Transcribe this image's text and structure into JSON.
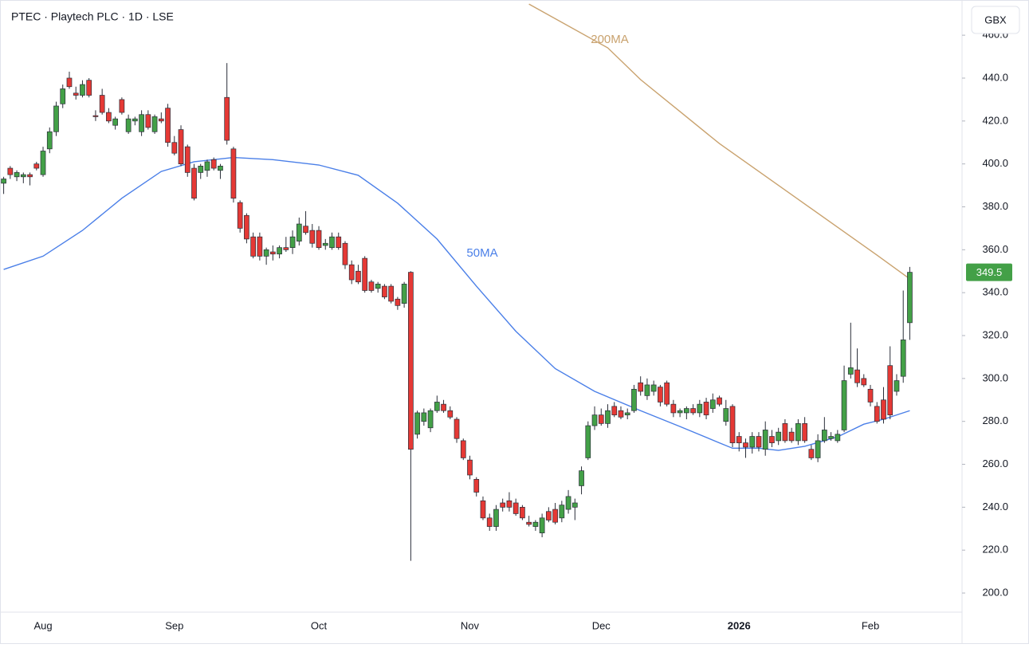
{
  "chart_data": {
    "type": "candlestick",
    "title": "PTEC · Playtech PLC · 1D · LSE",
    "currency": "GBX",
    "up_color": "#43a047",
    "down_color": "#e53935",
    "grid": false,
    "ylim": [
      191.1,
      476.4
    ],
    "yticks": [
      {
        "value": 200,
        "label": "200.0"
      },
      {
        "value": 220,
        "label": "220.0"
      },
      {
        "value": 240,
        "label": "240.0"
      },
      {
        "value": 260,
        "label": "260.0"
      },
      {
        "value": 280,
        "label": "280.0"
      },
      {
        "value": 300,
        "label": "300.0"
      },
      {
        "value": 320,
        "label": "320.0"
      },
      {
        "value": 340,
        "label": "340.0"
      },
      {
        "value": 360,
        "label": "360.0"
      },
      {
        "value": 380,
        "label": "380.0"
      },
      {
        "value": 400,
        "label": "400.0"
      },
      {
        "value": 420,
        "label": "420.0"
      },
      {
        "value": 440,
        "label": "440.0"
      },
      {
        "value": 460,
        "label": "460.0"
      }
    ],
    "categories": [
      null,
      null,
      null,
      null,
      null,
      null,
      "Aug",
      null,
      null,
      null,
      null,
      null,
      null,
      null,
      null,
      null,
      null,
      null,
      null,
      null,
      null,
      null,
      null,
      null,
      null,
      null,
      "Sep",
      null,
      null,
      null,
      null,
      null,
      null,
      null,
      null,
      null,
      null,
      null,
      null,
      null,
      null,
      null,
      null,
      null,
      null,
      null,
      null,
      null,
      "Oct",
      null,
      null,
      null,
      null,
      null,
      null,
      null,
      null,
      null,
      null,
      null,
      null,
      null,
      null,
      null,
      null,
      null,
      null,
      null,
      null,
      null,
      null,
      "Nov",
      null,
      null,
      null,
      null,
      null,
      null,
      null,
      null,
      null,
      null,
      null,
      null,
      null,
      null,
      null,
      null,
      null,
      null,
      null,
      "Dec",
      null,
      null,
      null,
      null,
      null,
      null,
      null,
      null,
      null,
      null,
      null,
      null,
      null,
      null,
      null,
      null,
      null,
      null,
      null,
      null,
      "2026",
      null,
      null,
      null,
      null,
      null,
      null,
      null,
      null,
      null,
      null,
      null,
      null,
      null,
      null,
      null,
      null,
      null,
      null,
      null,
      "Feb",
      null,
      null,
      null,
      null,
      null,
      null
    ],
    "open": [
      391,
      398,
      394,
      394,
      395,
      400,
      395,
      407,
      415,
      428,
      440,
      433,
      432,
      439,
      422.5,
      432,
      424,
      418,
      430,
      415,
      420,
      415,
      423,
      415,
      421,
      426,
      410,
      416,
      408,
      398,
      396,
      397,
      402,
      397,
      431,
      407,
      382,
      376,
      366,
      366,
      357,
      359,
      358,
      361,
      361,
      364,
      371,
      369,
      369,
      362,
      361,
      366,
      363,
      353,
      350,
      356,
      345,
      342,
      343,
      343,
      337,
      335,
      349.5,
      274,
      280,
      277,
      285,
      288,
      285,
      281,
      271,
      262,
      253,
      243,
      235,
      231,
      242,
      243,
      242,
      240,
      233,
      231,
      228,
      238,
      239,
      235,
      239,
      240,
      250,
      263,
      278,
      283,
      279,
      287,
      285,
      283,
      285,
      298,
      292,
      294,
      296,
      298,
      288,
      284,
      284,
      286,
      284,
      289,
      286,
      291,
      280,
      287,
      273,
      270,
      268,
      273,
      267,
      273,
      271,
      279,
      275,
      271,
      279,
      267,
      263,
      271,
      272,
      271,
      276,
      302,
      304,
      300,
      295,
      287,
      290,
      306,
      294,
      301,
      326
    ],
    "high": [
      394,
      399,
      397,
      396,
      396,
      401,
      408,
      417,
      429,
      437,
      443,
      436,
      439,
      440,
      425,
      435,
      426,
      422,
      431,
      423,
      422,
      425,
      425,
      423,
      424,
      428,
      413,
      418,
      409,
      400,
      400,
      402,
      403,
      400,
      447,
      408,
      383,
      377,
      368,
      368,
      361,
      362,
      362,
      366,
      369,
      375,
      378,
      372,
      371,
      365,
      368,
      368,
      364,
      355,
      353,
      357,
      346,
      345,
      344,
      344,
      338,
      345,
      350,
      285,
      286,
      286,
      292,
      290,
      287,
      282,
      272,
      264,
      254,
      245,
      237,
      241,
      244,
      247,
      244,
      241,
      236,
      234,
      237,
      240,
      242,
      243,
      248,
      244,
      259,
      280,
      287,
      286,
      288,
      289,
      287,
      286,
      297,
      301,
      300,
      299,
      297,
      299,
      290,
      286,
      287,
      288,
      290,
      291,
      293,
      292,
      290,
      288,
      275,
      272,
      275,
      275,
      280,
      276,
      277,
      281,
      277,
      281,
      282,
      269,
      274,
      282,
      275,
      276,
      306,
      326,
      314,
      302,
      297,
      289,
      296,
      315,
      302,
      341,
      352
    ],
    "low": [
      386,
      393,
      392,
      391,
      390,
      397,
      394,
      405,
      413,
      426,
      435,
      430,
      431,
      431,
      420,
      423,
      419,
      416,
      423,
      414,
      418,
      413,
      416,
      414,
      419,
      408,
      404,
      399,
      394,
      383,
      393,
      394,
      397,
      393,
      409,
      382,
      368,
      363,
      356,
      355,
      353,
      355,
      356,
      359,
      358,
      362,
      367,
      361,
      360,
      360,
      360,
      360,
      351,
      344,
      344,
      340,
      340,
      340,
      337,
      335,
      332,
      333,
      215,
      272,
      278,
      275,
      284,
      284,
      281,
      270,
      262,
      253,
      245,
      234,
      229,
      229,
      238,
      238,
      236,
      234,
      231,
      229,
      226,
      233,
      232,
      233,
      237,
      234,
      246,
      262,
      276,
      278,
      277,
      282,
      281,
      281,
      284,
      292,
      290,
      292,
      287,
      287,
      282,
      282,
      281,
      283,
      282,
      281,
      284,
      287,
      278,
      268,
      266,
      263,
      265,
      266,
      264,
      268,
      269,
      270,
      270,
      269,
      270,
      262,
      261,
      270,
      271,
      270,
      275,
      300,
      296,
      296,
      287,
      279,
      279,
      281,
      292,
      298,
      318
    ],
    "close": [
      393,
      395,
      396,
      395,
      394,
      398,
      406,
      415,
      427,
      435,
      436,
      432,
      437,
      432,
      422,
      424,
      420,
      421,
      424,
      421,
      421,
      423,
      417,
      422,
      420,
      410,
      405,
      400,
      396,
      384,
      399,
      401,
      398,
      399,
      411,
      384,
      370,
      365,
      357,
      357,
      360,
      358,
      361,
      360,
      366,
      372,
      368,
      363,
      361,
      363,
      366,
      361,
      353,
      346,
      345,
      341,
      341,
      344,
      338,
      336,
      334,
      344,
      267,
      284,
      284,
      285,
      289,
      285,
      282,
      272,
      263,
      255,
      247,
      235,
      231,
      239,
      240,
      240,
      237,
      235,
      232,
      233,
      235,
      234,
      233,
      241,
      245,
      242,
      257,
      278,
      283,
      279,
      285,
      283,
      282,
      284,
      295,
      294,
      297,
      297,
      289,
      288,
      284,
      285,
      286,
      284,
      288,
      283,
      290,
      288,
      286,
      270,
      270,
      268,
      273,
      268,
      276,
      270,
      275,
      271,
      271,
      279,
      271,
      263,
      271,
      276,
      273,
      274,
      299,
      305,
      298,
      297,
      289,
      280,
      281,
      283,
      299,
      318,
      349.5
    ],
    "lines": [
      {
        "name": "50MA",
        "color": "#4a7fe8",
        "x": [
          0,
          6,
          12,
          18,
          24,
          29,
          35,
          41,
          48,
          54,
          60,
          66,
          72,
          78,
          84,
          90,
          97,
          103,
          109,
          111,
          115,
          118,
          122,
          127,
          131,
          134,
          138
        ],
        "values": [
          350.8,
          357,
          369,
          384,
          396.5,
          401,
          403,
          402,
          399.5,
          394.7,
          381.7,
          365,
          343,
          322,
          304.6,
          294,
          285,
          277.6,
          270,
          267.5,
          267.5,
          266.5,
          268.4,
          272.8,
          278.7,
          281,
          285
        ]
      },
      {
        "name": "200MA",
        "color": "#c9a26e",
        "x": [
          80,
          92,
          97,
          103,
          109,
          115,
          121,
          127,
          133,
          138
        ],
        "values": [
          474.5,
          454.1,
          439.3,
          424.4,
          409.5,
          396.5,
          383.5,
          370.5,
          357.5,
          346.4
        ]
      }
    ]
  }
}
